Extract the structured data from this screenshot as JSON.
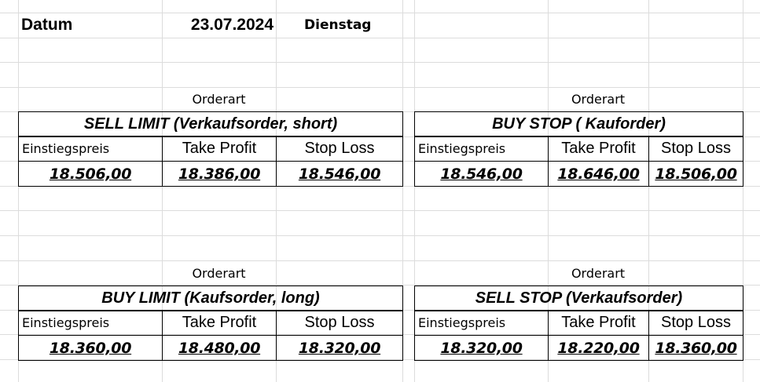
{
  "header": {
    "date_label": "Datum",
    "date_value": "23.07.2024",
    "weekday": "Dienstag"
  },
  "orders": [
    {
      "section_label": "Orderart",
      "title": "SELL LIMIT (Verkaufsorder, short)",
      "columns": [
        "Einstiegspreis",
        "Take Profit",
        "Stop Loss"
      ],
      "values": [
        "18.506,00",
        "18.386,00",
        "18.546,00"
      ]
    },
    {
      "section_label": "Orderart",
      "title": "BUY STOP ( Kauforder)",
      "columns": [
        "Einstiegspreis",
        "Take Profit",
        "Stop Loss"
      ],
      "values": [
        "18.546,00",
        "18.646,00",
        "18.506,00"
      ]
    },
    {
      "section_label": "Orderart",
      "title": "BUY LIMIT (Kaufsorder, long)",
      "columns": [
        "Einstiegspreis",
        "Take Profit",
        "Stop Loss"
      ],
      "values": [
        "18.360,00",
        "18.480,00",
        "18.320,00"
      ]
    },
    {
      "section_label": "Orderart",
      "title": "SELL STOP (Verkaufsorder)",
      "columns": [
        "Einstiegspreis",
        "Take Profit",
        "Stop Loss"
      ],
      "values": [
        "18.320,00",
        "18.220,00",
        "18.360,00"
      ]
    }
  ]
}
